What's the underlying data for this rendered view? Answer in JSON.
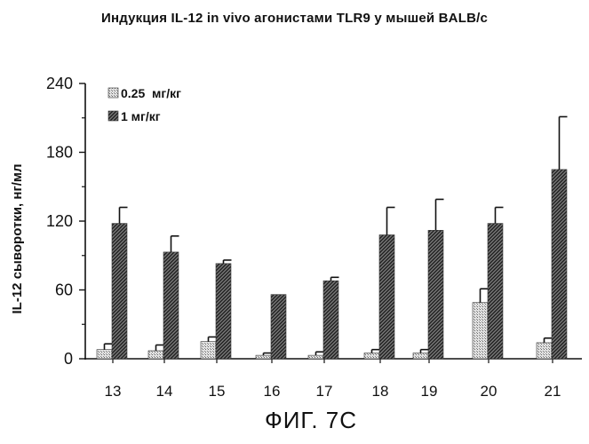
{
  "title": "Индукция IL-12 in vivo агонистами TLR9 у мышей BALB/c",
  "figure_label": "ФИГ. 7С",
  "chart_data": {
    "type": "bar",
    "title": "Индукция IL-12 in vivo агонистами TLR9 у мышей BALB/c",
    "xlabel": "",
    "ylabel": "IL-12 сыворотки, нг/мл",
    "categories": [
      "13",
      "14",
      "15",
      "16",
      "17",
      "18",
      "19",
      "20",
      "21"
    ],
    "ylim": [
      0,
      240
    ],
    "yticks": [
      "0",
      "60",
      "120",
      "180",
      "240"
    ],
    "grid": false,
    "legend_position": "top-left",
    "series": [
      {
        "name": "0.25  мг/кг",
        "pattern": "light-dots",
        "color": "#bdbdbd",
        "values": [
          8,
          7,
          15,
          3,
          3,
          5,
          5,
          49,
          14
        ],
        "errors": [
          5,
          5,
          4,
          2,
          3,
          3,
          3,
          12,
          4
        ]
      },
      {
        "name": "1 мг/кг",
        "pattern": "dark-hatch",
        "color": "#555555",
        "values": [
          118,
          93,
          83,
          56,
          68,
          108,
          112,
          118,
          165
        ],
        "errors": [
          14,
          14,
          3,
          0,
          3,
          24,
          27,
          14,
          46
        ]
      }
    ]
  }
}
